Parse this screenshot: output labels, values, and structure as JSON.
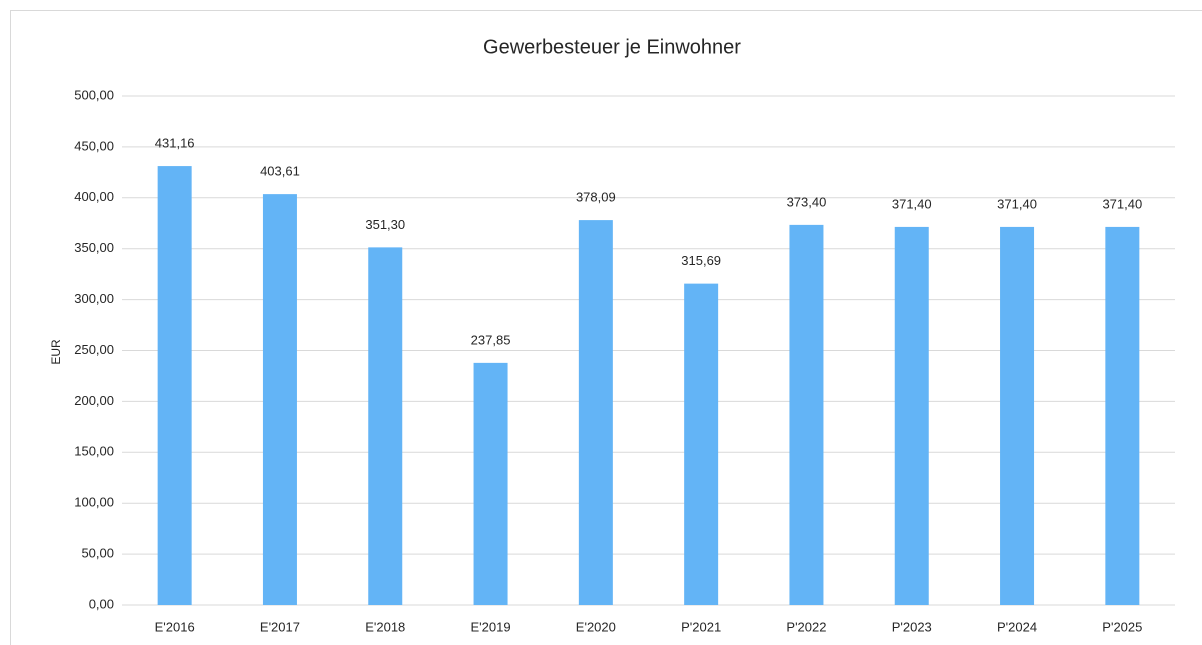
{
  "chart_data": {
    "type": "bar",
    "title": "Gewerbesteuer je Einwohner",
    "y_label": "EUR",
    "categories": [
      "E'2016",
      "E'2017",
      "E'2018",
      "E'2019",
      "E'2020",
      "P'2021",
      "P'2022",
      "P'2023",
      "P'2024",
      "P'2025"
    ],
    "values": [
      431.16,
      403.61,
      351.3,
      237.85,
      378.09,
      315.69,
      373.4,
      371.4,
      371.4,
      371.4
    ],
    "value_labels": [
      "431,16",
      "403,61",
      "351,30",
      "237,85",
      "378,09",
      "315,69",
      "373,40",
      "371,40",
      "371,40",
      "371,40"
    ],
    "color": "#63b4f6",
    "ylim": [
      0,
      500
    ],
    "yticks": [
      {
        "value": 0,
        "label": "0,00"
      },
      {
        "value": 50,
        "label": "50,00"
      },
      {
        "value": 100,
        "label": "100,00"
      },
      {
        "value": 150,
        "label": "150,00"
      },
      {
        "value": 200,
        "label": "200,00"
      },
      {
        "value": 250,
        "label": "250,00"
      },
      {
        "value": 300,
        "label": "300,00"
      },
      {
        "value": 350,
        "label": "350,00"
      },
      {
        "value": 400,
        "label": "400,00"
      },
      {
        "value": 450,
        "label": "450,00"
      },
      {
        "value": 500,
        "label": "500,00"
      }
    ],
    "grid": true
  }
}
